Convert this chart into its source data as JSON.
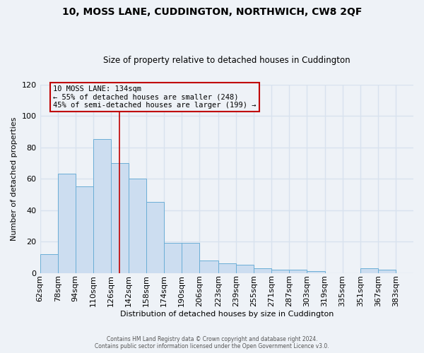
{
  "title": "10, MOSS LANE, CUDDINGTON, NORTHWICH, CW8 2QF",
  "subtitle": "Size of property relative to detached houses in Cuddington",
  "xlabel": "Distribution of detached houses by size in Cuddington",
  "ylabel": "Number of detached properties",
  "bar_values": [
    12,
    63,
    55,
    85,
    70,
    60,
    45,
    19,
    19,
    8,
    6,
    5,
    3,
    2,
    2,
    1,
    0,
    0,
    3,
    2,
    0
  ],
  "bin_edges": [
    62,
    78,
    94,
    110,
    126,
    142,
    158,
    174,
    190,
    206,
    223,
    239,
    255,
    271,
    287,
    303,
    319,
    335,
    351,
    367,
    383,
    399
  ],
  "bin_labels": [
    "62sqm",
    "78sqm",
    "94sqm",
    "110sqm",
    "126sqm",
    "142sqm",
    "158sqm",
    "174sqm",
    "190sqm",
    "206sqm",
    "223sqm",
    "239sqm",
    "255sqm",
    "271sqm",
    "287sqm",
    "303sqm",
    "319sqm",
    "335sqm",
    "351sqm",
    "367sqm",
    "383sqm"
  ],
  "bar_color": "#ccddf0",
  "bar_edge_color": "#6baed6",
  "property_value": 134,
  "vline_color": "#c00000",
  "annotation_line1": "10 MOSS LANE: 134sqm",
  "annotation_line2": "← 55% of detached houses are smaller (248)",
  "annotation_line3": "45% of semi-detached houses are larger (199) →",
  "annotation_box_color": "#c00000",
  "ylim": [
    0,
    120
  ],
  "yticks": [
    0,
    20,
    40,
    60,
    80,
    100,
    120
  ],
  "footer_line1": "Contains HM Land Registry data © Crown copyright and database right 2024.",
  "footer_line2": "Contains public sector information licensed under the Open Government Licence v3.0.",
  "background_color": "#eef2f7",
  "grid_color": "#d8e2ee"
}
